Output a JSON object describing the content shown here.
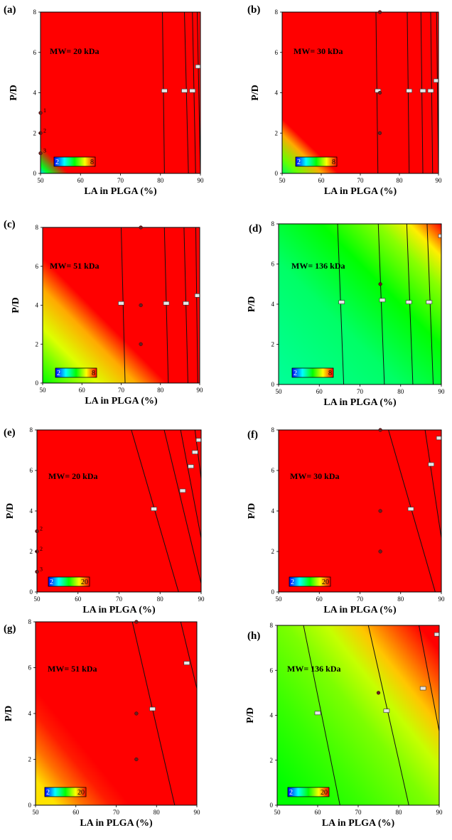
{
  "figure": {
    "colormap": [
      "#0000ff",
      "#00ffff",
      "#00ff00",
      "#ffff00",
      "#ff0000"
    ],
    "panels": [
      {
        "label": "(a)",
        "mw": "MW= 20 kDa",
        "cbar": {
          "min": "2",
          "max": "8",
          "lo": 2,
          "hi": 8
        },
        "field": {
          "type": "vertical",
          "stops": [
            [
              50,
              3.2
            ],
            [
              51,
              4.8
            ],
            [
              53.5,
              8
            ],
            [
              90,
              8
            ]
          ]
        },
        "contours": [
          [
            [
              81,
              0
            ],
            [
              80.5,
              8
            ]
          ],
          [
            [
              87,
              0
            ],
            [
              86,
              8
            ]
          ],
          [
            [
              88.8,
              0
            ],
            [
              88,
              8
            ]
          ],
          [
            [
              90,
              0
            ],
            [
              89.2,
              8
            ]
          ]
        ],
        "flags": [
          [
            81,
            4.1
          ],
          [
            86,
            4.1
          ],
          [
            88,
            4.1
          ],
          [
            89.5,
            5.3
          ]
        ],
        "points": [
          [
            50,
            3
          ],
          [
            50,
            2
          ],
          [
            50,
            1
          ]
        ],
        "point_labels": [
          "1",
          "2",
          "3"
        ]
      },
      {
        "label": "(b)",
        "mw": "MW= 30 kDa",
        "cbar": {
          "min": "2",
          "max": "8",
          "lo": 2,
          "hi": 8
        },
        "field": {
          "type": "vertical",
          "stops": [
            [
              50,
              4.5
            ],
            [
              52,
              5.6
            ],
            [
              55,
              7
            ],
            [
              57,
              8
            ],
            [
              90,
              8
            ]
          ]
        },
        "contours": [
          [
            [
              74.5,
              0
            ],
            [
              74,
              8
            ]
          ],
          [
            [
              82.5,
              0
            ],
            [
              82,
              8
            ]
          ],
          [
            [
              86,
              0
            ],
            [
              85.5,
              8
            ]
          ],
          [
            [
              88.5,
              0
            ],
            [
              88,
              8
            ]
          ],
          [
            [
              90,
              0
            ],
            [
              89.5,
              8
            ]
          ]
        ],
        "flags": [
          [
            74.5,
            4.1
          ],
          [
            82.5,
            4.1
          ],
          [
            86,
            4.1
          ],
          [
            88,
            4.1
          ],
          [
            89.5,
            4.6
          ]
        ],
        "points": [
          [
            75,
            8
          ],
          [
            75,
            4
          ],
          [
            75,
            2
          ]
        ],
        "point_labels": []
      },
      {
        "label": "(c)",
        "mw": "MW= 51 kDa",
        "cbar": {
          "min": "2",
          "max": "8",
          "lo": 2,
          "hi": 8
        },
        "field": {
          "type": "vertical",
          "stops": [
            [
              50,
              5
            ],
            [
              57,
              6.3
            ],
            [
              62,
              7
            ],
            [
              66,
              8
            ],
            [
              90,
              8
            ]
          ]
        },
        "contours": [
          [
            [
              71,
              0
            ],
            [
              70,
              8
            ]
          ],
          [
            [
              82,
              0
            ],
            [
              81,
              8
            ]
          ],
          [
            [
              87,
              0
            ],
            [
              86,
              8
            ]
          ],
          [
            [
              89.5,
              0
            ],
            [
              89,
              8
            ]
          ]
        ],
        "flags": [
          [
            70,
            4.1
          ],
          [
            81.5,
            4.1
          ],
          [
            86.5,
            4.1
          ],
          [
            89.5,
            4.5
          ]
        ],
        "points": [
          [
            75,
            8
          ],
          [
            75,
            4
          ],
          [
            75,
            2
          ]
        ],
        "point_labels": []
      },
      {
        "label": "(d)",
        "mw": "MW= 136 kDa",
        "cbar": {
          "min": "2",
          "max": "8",
          "lo": 2,
          "hi": 8
        },
        "field": {
          "type": "vertical",
          "stops": [
            [
              50,
              4.1
            ],
            [
              65,
              4.4
            ],
            [
              75,
              5
            ],
            [
              82,
              5.8
            ],
            [
              86,
              6.6
            ],
            [
              90,
              8
            ]
          ]
        },
        "contours": [
          [
            [
              66,
              0
            ],
            [
              64.5,
              8
            ]
          ],
          [
            [
              76,
              0
            ],
            [
              74.5,
              8
            ]
          ],
          [
            [
              83,
              0
            ],
            [
              81.5,
              8
            ]
          ],
          [
            [
              88,
              0
            ],
            [
              86.5,
              8
            ]
          ]
        ],
        "flags": [
          [
            65.5,
            4.1
          ],
          [
            75.5,
            4.2
          ],
          [
            82,
            4.1
          ],
          [
            87,
            4.1
          ],
          [
            90,
            7.4
          ]
        ],
        "points": [
          [
            75,
            5
          ]
        ],
        "point_labels": []
      },
      {
        "label": "(e)",
        "mw": "MW= 20 kDa",
        "cbar": {
          "min": "2",
          "max": "20",
          "lo": 2,
          "hi": 20
        },
        "field": {
          "type": "tilted",
          "stops": [
            [
              50,
              20
            ],
            [
              90,
              20
            ]
          ]
        },
        "contours": [
          [
            [
              84.5,
              0
            ],
            [
              73,
              8
            ]
          ],
          [
            [
              90.5,
              0
            ],
            [
              81,
              8
            ]
          ],
          [
            [
              92.5,
              0
            ],
            [
              85,
              8
            ]
          ],
          [
            [
              93.5,
              0
            ],
            [
              88.5,
              8
            ]
          ]
        ],
        "flags": [
          [
            78.5,
            4.1
          ],
          [
            85.5,
            5
          ],
          [
            87.5,
            6.2
          ],
          [
            88.5,
            6.9
          ],
          [
            89.5,
            7.5
          ]
        ],
        "points": [
          [
            50,
            3
          ],
          [
            50,
            2
          ],
          [
            50,
            1
          ]
        ],
        "point_labels": [
          "2",
          "2",
          "3"
        ]
      },
      {
        "label": "(f)",
        "mw": "MW= 30 kDa",
        "cbar": {
          "min": "2",
          "max": "20",
          "lo": 2,
          "hi": 20
        },
        "field": {
          "type": "tilted",
          "stops": [
            [
              50,
              20
            ],
            [
              90,
              20
            ]
          ]
        },
        "contours": [
          [
            [
              88.5,
              0
            ],
            [
              77,
              8
            ]
          ],
          [
            [
              92,
              0
            ],
            [
              86,
              8
            ]
          ]
        ],
        "flags": [
          [
            82.5,
            4.1
          ],
          [
            87.5,
            6.3
          ],
          [
            89.5,
            7.6
          ]
        ],
        "points": [
          [
            75,
            8
          ],
          [
            75,
            4
          ],
          [
            75,
            2
          ]
        ],
        "point_labels": []
      },
      {
        "label": "(g)",
        "mw": "MW= 51 kDa",
        "cbar": {
          "min": "2",
          "max": "20",
          "lo": 2,
          "hi": 20
        },
        "field": {
          "type": "tilted",
          "stops": [
            [
              50,
              16
            ],
            [
              54,
              18
            ],
            [
              58,
              19.5
            ],
            [
              61,
              20
            ],
            [
              90,
              20
            ]
          ]
        },
        "contours": [
          [
            [
              84.5,
              0
            ],
            [
              74,
              8
            ]
          ],
          [
            [
              97,
              0
            ],
            [
              86,
              8
            ]
          ]
        ],
        "flags": [
          [
            79,
            4.2
          ],
          [
            87.5,
            6.2
          ]
        ],
        "points": [
          [
            75,
            8
          ],
          [
            75,
            4
          ],
          [
            75,
            2
          ]
        ],
        "point_labels": []
      },
      {
        "label": "(h)",
        "mw": "MW= 136 kDa",
        "cbar": {
          "min": "2",
          "max": "20",
          "lo": 2,
          "hi": 20
        },
        "field": {
          "type": "tilted",
          "stops": [
            [
              50,
              11
            ],
            [
              60,
              12
            ],
            [
              70,
              13.2
            ],
            [
              76,
              14.5
            ],
            [
              81,
              16.5
            ],
            [
              86,
              18.5
            ],
            [
              90,
              20
            ]
          ]
        },
        "contours": [
          [
            [
              65.5,
              0
            ],
            [
              56.5,
              8
            ]
          ],
          [
            [
              82.5,
              0
            ],
            [
              72.5,
              8
            ]
          ],
          [
            [
              93.5,
              0
            ],
            [
              85,
              8
            ]
          ]
        ],
        "flags": [
          [
            60,
            4.1
          ],
          [
            77,
            4.2
          ],
          [
            86,
            5.2
          ],
          [
            89.5,
            7.6
          ]
        ],
        "points": [
          [
            75,
            5
          ]
        ],
        "point_labels": []
      }
    ]
  },
  "chart_data": [
    {
      "type": "heatmap",
      "panel": "(a)",
      "title": "MW= 20 kDa",
      "xlabel": "LA in PLGA (%)",
      "ylabel": "P/D",
      "xlim": [
        50,
        90
      ],
      "ylim": [
        0,
        8
      ],
      "xticks": [
        "50",
        "60",
        "70",
        "80",
        "90"
      ],
      "yticks": [
        "0",
        "2",
        "4",
        "6",
        "8"
      ],
      "colorbar": {
        "min": 2,
        "max": 8
      },
      "contour_x_at_pd4": [
        81,
        86,
        88,
        89.5
      ],
      "design_points": [
        {
          "x": 50,
          "y": 3,
          "label": "1"
        },
        {
          "x": 50,
          "y": 2,
          "label": "2"
        },
        {
          "x": 50,
          "y": 1,
          "label": "3"
        }
      ]
    },
    {
      "type": "heatmap",
      "panel": "(b)",
      "title": "MW= 30 kDa",
      "xlabel": "LA in PLGA (%)",
      "ylabel": "P/D",
      "xlim": [
        50,
        90
      ],
      "ylim": [
        0,
        8
      ],
      "xticks": [
        "50",
        "60",
        "70",
        "80",
        "90"
      ],
      "yticks": [
        "0",
        "2",
        "4",
        "6",
        "8"
      ],
      "colorbar": {
        "min": 2,
        "max": 8
      },
      "contour_x_at_pd4": [
        74.5,
        82.5,
        86,
        88,
        89.5
      ],
      "design_points": [
        {
          "x": 75,
          "y": 8
        },
        {
          "x": 75,
          "y": 4
        },
        {
          "x": 75,
          "y": 2
        }
      ]
    },
    {
      "type": "heatmap",
      "panel": "(c)",
      "title": "MW= 51 kDa",
      "xlabel": "LA in PLGA (%)",
      "ylabel": "P/D",
      "xlim": [
        50,
        90
      ],
      "ylim": [
        0,
        8
      ],
      "xticks": [
        "50",
        "60",
        "70",
        "80",
        "90"
      ],
      "yticks": [
        "0",
        "2",
        "4",
        "6",
        "8"
      ],
      "colorbar": {
        "min": 2,
        "max": 8
      },
      "contour_x_at_pd4": [
        70,
        81.5,
        86.5,
        89.5
      ],
      "design_points": [
        {
          "x": 75,
          "y": 8
        },
        {
          "x": 75,
          "y": 4
        },
        {
          "x": 75,
          "y": 2
        }
      ]
    },
    {
      "type": "heatmap",
      "panel": "(d)",
      "title": "MW= 136 kDa",
      "xlabel": "LA in PLGA (%)",
      "ylabel": "P/D",
      "xlim": [
        50,
        90
      ],
      "ylim": [
        0,
        8
      ],
      "xticks": [
        "50",
        "60",
        "70",
        "80",
        "90"
      ],
      "yticks": [
        "0",
        "2",
        "4",
        "6",
        "8"
      ],
      "colorbar": {
        "min": 2,
        "max": 8
      },
      "contour_x_at_pd4": [
        65.5,
        75.5,
        82,
        87
      ],
      "design_points": [
        {
          "x": 75,
          "y": 5
        }
      ]
    },
    {
      "type": "heatmap",
      "panel": "(e)",
      "title": "MW= 20 kDa",
      "xlabel": "LA in PLGA (%)",
      "ylabel": "P/D",
      "xlim": [
        50,
        90
      ],
      "ylim": [
        0,
        8
      ],
      "xticks": [
        "50",
        "60",
        "70",
        "80",
        "90"
      ],
      "yticks": [
        "0",
        "2",
        "4",
        "6",
        "8"
      ],
      "colorbar": {
        "min": 2,
        "max": 20
      },
      "design_points": [
        {
          "x": 50,
          "y": 3,
          "label": "2"
        },
        {
          "x": 50,
          "y": 2,
          "label": "2"
        },
        {
          "x": 50,
          "y": 1,
          "label": "3"
        }
      ]
    },
    {
      "type": "heatmap",
      "panel": "(f)",
      "title": "MW= 30 kDa",
      "xlabel": "LA in PLGA (%)",
      "ylabel": "P/D",
      "xlim": [
        50,
        90
      ],
      "ylim": [
        0,
        8
      ],
      "xticks": [
        "50",
        "60",
        "70",
        "80",
        "90"
      ],
      "yticks": [
        "0",
        "2",
        "4",
        "6",
        "8"
      ],
      "colorbar": {
        "min": 2,
        "max": 20
      },
      "design_points": [
        {
          "x": 75,
          "y": 8
        },
        {
          "x": 75,
          "y": 4
        },
        {
          "x": 75,
          "y": 2
        }
      ]
    },
    {
      "type": "heatmap",
      "panel": "(g)",
      "title": "MW= 51 kDa",
      "xlabel": "LA in PLGA (%)",
      "ylabel": "P/D",
      "xlim": [
        50,
        90
      ],
      "ylim": [
        0,
        8
      ],
      "xticks": [
        "50",
        "60",
        "70",
        "80",
        "90"
      ],
      "yticks": [
        "0",
        "2",
        "4",
        "6",
        "8"
      ],
      "colorbar": {
        "min": 2,
        "max": 20
      },
      "design_points": [
        {
          "x": 75,
          "y": 8
        },
        {
          "x": 75,
          "y": 4
        },
        {
          "x": 75,
          "y": 2
        }
      ]
    },
    {
      "type": "heatmap",
      "panel": "(h)",
      "title": "MW= 136 kDa",
      "xlabel": "LA in PLGA (%)",
      "ylabel": "P/D",
      "xlim": [
        50,
        90
      ],
      "ylim": [
        0,
        8
      ],
      "xticks": [
        "50",
        "60",
        "70",
        "80",
        "90"
      ],
      "yticks": [
        "0",
        "2",
        "4",
        "6",
        "8"
      ],
      "colorbar": {
        "min": 2,
        "max": 20
      },
      "design_points": [
        {
          "x": 75,
          "y": 5
        }
      ]
    }
  ]
}
